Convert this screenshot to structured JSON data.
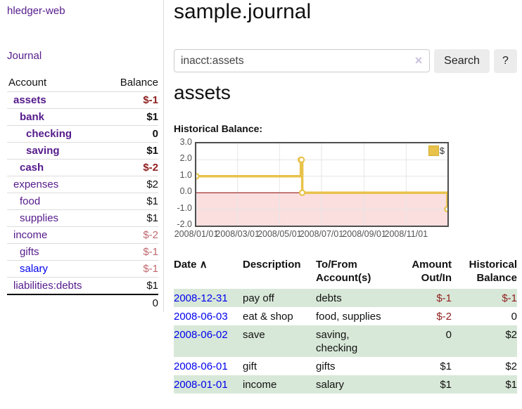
{
  "app": {
    "title": "hledger-web"
  },
  "sidebar": {
    "journal_label": "Journal",
    "accounts_table": {
      "header_account": "Account",
      "header_balance": "Balance",
      "rows": [
        {
          "name": "assets",
          "balance": "$-1"
        },
        {
          "name": "bank",
          "balance": "$1"
        },
        {
          "name": "checking",
          "balance": "0"
        },
        {
          "name": "saving",
          "balance": "$1"
        },
        {
          "name": "cash",
          "balance": "$-2"
        },
        {
          "name": "expenses",
          "balance": "$2"
        },
        {
          "name": "food",
          "balance": "$1"
        },
        {
          "name": "supplies",
          "balance": "$1"
        },
        {
          "name": "income",
          "balance": "$-2"
        },
        {
          "name": "gifts",
          "balance": "$-1"
        },
        {
          "name": "salary",
          "balance": "$-1"
        },
        {
          "name": "liabilities:debts",
          "balance": "$1"
        }
      ],
      "total": "0"
    }
  },
  "header": {
    "title": "sample.journal"
  },
  "search": {
    "value": "inacct:assets",
    "clear_icon": "×",
    "search_button": "Search",
    "help_button": "?"
  },
  "account_page": {
    "title": "assets",
    "section_label": "Historical Balance:"
  },
  "chart_data": {
    "type": "line",
    "style": "step",
    "series": [
      {
        "name": "$",
        "color": "#e8c24a",
        "points": [
          {
            "date": "2008-01-01",
            "value": 1
          },
          {
            "date": "2008-06-01",
            "value": 2
          },
          {
            "date": "2008-06-02",
            "value": 2
          },
          {
            "date": "2008-06-03",
            "value": 0
          },
          {
            "date": "2008-12-31",
            "value": -1
          }
        ]
      }
    ],
    "xlim": [
      "2008-01-01",
      "2008-12-31"
    ],
    "ylim": [
      -2,
      3
    ],
    "yticks": [
      {
        "v": 3,
        "label": "3.0"
      },
      {
        "v": 2,
        "label": "2.0"
      },
      {
        "v": 1,
        "label": "1.0"
      },
      {
        "v": 0,
        "label": "0.0"
      },
      {
        "v": -1,
        "label": "-1.0"
      },
      {
        "v": -2,
        "label": "-2.0"
      }
    ],
    "xticks": [
      {
        "date": "2008-01-01",
        "label": "2008/01/01"
      },
      {
        "date": "2008-03-01",
        "label": "2008/03/01"
      },
      {
        "date": "2008-05-01",
        "label": "2008/05/01"
      },
      {
        "date": "2008-07-01",
        "label": "2008/07/01"
      },
      {
        "date": "2008-09-01",
        "label": "2008/09/01"
      },
      {
        "date": "2008-11-01",
        "label": "2008/11/01"
      }
    ],
    "grid": true,
    "negative_fill": "#fbdede",
    "zero_line_color": "#8b0000",
    "legend": {
      "label": "$",
      "position": "top-right"
    }
  },
  "register": {
    "headers": {
      "date": "Date",
      "sort_icon": "∧",
      "description": "Description",
      "accounts": "To/From Account(s)",
      "amount": "Amount Out/In",
      "balance": "Historical Balance"
    },
    "rows": [
      {
        "date": "2008-12-31",
        "description": "pay off",
        "accounts": "debts",
        "amount": "$-1",
        "balance": "$-1"
      },
      {
        "date": "2008-06-03",
        "description": "eat & shop",
        "accounts": "food, supplies",
        "amount": "$-2",
        "balance": "0"
      },
      {
        "date": "2008-06-02",
        "description": "save",
        "accounts": "saving, checking",
        "amount": "0",
        "balance": "$2"
      },
      {
        "date": "2008-06-01",
        "description": "gift",
        "accounts": "gifts",
        "amount": "$1",
        "balance": "$2"
      },
      {
        "date": "2008-01-01",
        "description": "income",
        "accounts": "salary",
        "amount": "$1",
        "balance": "$1"
      }
    ]
  }
}
